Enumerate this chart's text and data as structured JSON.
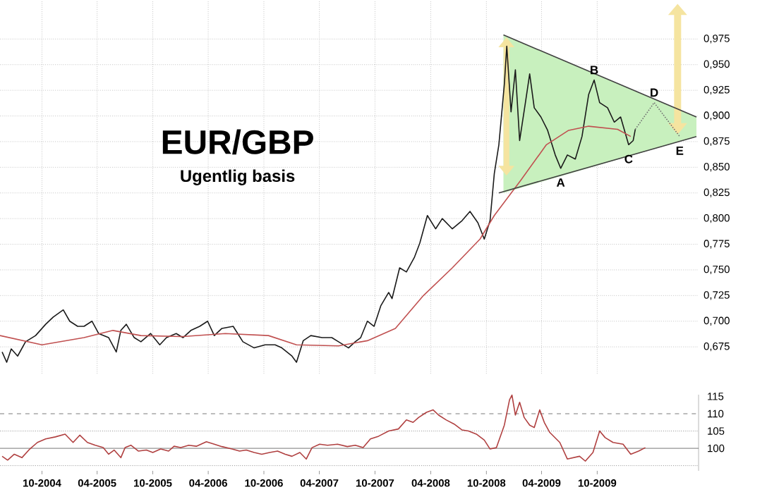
{
  "chart_data": [
    {
      "type": "line",
      "title": "EUR/GBP",
      "subtitle": "Ugentlig basis",
      "xlim": [
        "2004-05-16",
        "2010-08-30"
      ],
      "ylim": [
        0.649,
        1.013
      ],
      "tick_labels": "y",
      "grid": true,
      "xticks": [
        {
          "value": "2004-10-01",
          "label": null
        },
        {
          "value": "2005-04-01",
          "label": null
        },
        {
          "value": "2005-10-01",
          "label": null
        },
        {
          "value": "2006-04-01",
          "label": null
        },
        {
          "value": "2006-10-01",
          "label": null
        },
        {
          "value": "2007-04-01",
          "label": null
        },
        {
          "value": "2007-10-01",
          "label": null
        },
        {
          "value": "2008-04-01",
          "label": null
        },
        {
          "value": "2008-10-01",
          "label": null
        },
        {
          "value": "2009-04-01",
          "label": null
        },
        {
          "value": "2009-10-01",
          "label": null
        }
      ],
      "yticks": [
        {
          "value": 0.675,
          "label": "0,675"
        },
        {
          "value": 0.7,
          "label": "0,700"
        },
        {
          "value": 0.725,
          "label": "0,725"
        },
        {
          "value": 0.75,
          "label": "0,750"
        },
        {
          "value": 0.775,
          "label": "0,775"
        },
        {
          "value": 0.8,
          "label": "0,800"
        },
        {
          "value": 0.825,
          "label": "0,825"
        },
        {
          "value": 0.85,
          "label": "0,850"
        },
        {
          "value": 0.875,
          "label": "0,875"
        },
        {
          "value": 0.9,
          "label": "0,900"
        },
        {
          "value": 0.925,
          "label": "0,925"
        },
        {
          "value": 0.95,
          "label": "0,950"
        },
        {
          "value": 0.975,
          "label": "0,975"
        }
      ],
      "annotations": [
        {
          "text": "A",
          "x": "2009-06-03",
          "y": 0.849
        },
        {
          "text": "B",
          "x": "2009-09-21",
          "y": 0.935
        },
        {
          "text": "C",
          "x": "2010-01-12",
          "y": 0.872
        },
        {
          "text": "D",
          "x": "2010-04-06",
          "y": 0.913
        },
        {
          "text": "E",
          "x": "2010-06-29",
          "y": 0.88
        }
      ],
      "series": [
        {
          "color": "#1a1a1a",
          "line_style": "solid",
          "x": [
            "2004-05-23",
            "2004-06-07",
            "2004-06-22",
            "2004-07-13",
            "2004-08-08",
            "2004-09-10",
            "2004-10-13",
            "2004-11-07",
            "2004-12-10",
            "2005-01-01",
            "2005-01-27",
            "2005-02-17",
            "2005-03-15",
            "2005-04-06",
            "2005-05-09",
            "2005-06-03",
            "2005-06-18",
            "2005-07-06",
            "2005-08-01",
            "2005-08-23",
            "2005-09-24",
            "2005-10-24",
            "2005-11-15",
            "2005-12-17",
            "2006-01-08",
            "2006-02-03",
            "2006-03-04",
            "2006-03-30",
            "2006-04-21",
            "2006-05-16",
            "2006-06-22",
            "2006-07-24",
            "2006-08-30",
            "2006-10-05",
            "2006-11-07",
            "2006-11-29",
            "2007-01-01",
            "2007-01-16",
            "2007-02-07",
            "2007-03-04",
            "2007-04-10",
            "2007-05-12",
            "2007-06-03",
            "2007-07-06",
            "2007-07-28",
            "2007-08-15",
            "2007-09-06",
            "2007-09-28",
            "2007-10-20",
            "2007-11-15",
            "2007-11-26",
            "2007-12-21",
            "2008-01-12",
            "2008-02-07",
            "2008-02-25",
            "2008-03-21",
            "2008-04-17",
            "2008-05-09",
            "2008-06-11",
            "2008-07-13",
            "2008-08-08",
            "2008-09-03",
            "2008-09-24",
            "2008-10-13",
            "2008-10-27",
            "2008-11-11",
            "2008-11-29",
            "2008-12-07",
            "2008-12-21",
            "2009-01-05",
            "2009-01-19",
            "2009-02-07",
            "2009-02-21",
            "2009-03-08",
            "2009-03-30",
            "2009-04-21",
            "2009-05-16",
            "2009-06-03",
            "2009-06-25",
            "2009-07-21",
            "2009-08-12",
            "2009-09-03",
            "2009-09-21",
            "2009-10-09",
            "2009-11-04",
            "2009-11-26",
            "2009-12-17",
            "2010-01-12",
            "2010-01-27",
            "2010-02-03"
          ],
          "values": [
            0.67,
            0.66,
            0.673,
            0.666,
            0.68,
            0.686,
            0.697,
            0.704,
            0.711,
            0.7,
            0.695,
            0.695,
            0.7,
            0.688,
            0.684,
            0.67,
            0.691,
            0.697,
            0.684,
            0.68,
            0.688,
            0.677,
            0.684,
            0.688,
            0.684,
            0.691,
            0.695,
            0.7,
            0.686,
            0.693,
            0.695,
            0.68,
            0.674,
            0.677,
            0.677,
            0.674,
            0.666,
            0.66,
            0.681,
            0.686,
            0.684,
            0.684,
            0.68,
            0.674,
            0.68,
            0.684,
            0.7,
            0.695,
            0.715,
            0.728,
            0.722,
            0.752,
            0.748,
            0.762,
            0.776,
            0.803,
            0.79,
            0.8,
            0.79,
            0.798,
            0.807,
            0.796,
            0.78,
            0.798,
            0.844,
            0.872,
            0.931,
            0.968,
            0.904,
            0.945,
            0.876,
            0.913,
            0.941,
            0.908,
            0.899,
            0.886,
            0.862,
            0.849,
            0.862,
            0.858,
            0.88,
            0.921,
            0.935,
            0.913,
            0.908,
            0.894,
            0.899,
            0.872,
            0.876,
            0.887
          ]
        },
        {
          "color": "#c05050",
          "line_style": "solid",
          "x": [
            "2004-05-16",
            "2004-10-01",
            "2005-02-17",
            "2005-05-23",
            "2005-08-23",
            "2006-01-08",
            "2006-05-27",
            "2006-10-16",
            "2007-01-16",
            "2007-06-03",
            "2007-09-06",
            "2007-12-07",
            "2008-03-08",
            "2008-06-11",
            "2008-09-10",
            "2008-10-27",
            "2009-01-27",
            "2009-04-17",
            "2009-06-29",
            "2009-09-03",
            "2009-12-07",
            "2010-01-19"
          ],
          "values": [
            0.686,
            0.677,
            0.684,
            0.691,
            0.686,
            0.685,
            0.688,
            0.686,
            0.677,
            0.676,
            0.681,
            0.693,
            0.725,
            0.752,
            0.78,
            0.803,
            0.839,
            0.872,
            0.886,
            0.89,
            0.887,
            0.88
          ]
        },
        {
          "color": "#404040",
          "line_style": "solid",
          "x": [
            "2008-11-26",
            "2010-08-23"
          ],
          "values": [
            0.979,
            0.899
          ],
          "lower": [
            0.825,
            0.88
          ],
          "upper": [
            0.979,
            0.899
          ]
        },
        {
          "color": "#404040",
          "line_style": "solid",
          "x": [
            "2008-11-11",
            "2010-08-23"
          ],
          "values": [
            0.825,
            0.88
          ]
        },
        {
          "color": "#707070",
          "line_style": "dotted",
          "x": [
            "2010-02-03",
            "2010-04-06",
            "2010-06-29"
          ],
          "values": [
            0.887,
            0.913,
            0.88
          ]
        }
      ]
    },
    {
      "type": "line",
      "xlim": [
        "2004-05-16",
        "2010-08-30"
      ],
      "ylim": [
        93.5,
        115.5
      ],
      "grid": false,
      "xticks": [
        {
          "value": "2004-10-01",
          "label": "10-2004"
        },
        {
          "value": "2005-04-01",
          "label": "04-2005"
        },
        {
          "value": "2005-10-01",
          "label": "10-2005"
        },
        {
          "value": "2006-04-01",
          "label": "04-2006"
        },
        {
          "value": "2006-10-01",
          "label": "10-2006"
        },
        {
          "value": "2007-04-01",
          "label": "04-2007"
        },
        {
          "value": "2007-10-01",
          "label": "10-2007"
        },
        {
          "value": "2008-04-01",
          "label": "04-2008"
        },
        {
          "value": "2008-10-01",
          "label": "10-2008"
        },
        {
          "value": "2009-04-01",
          "label": "04-2009"
        },
        {
          "value": "2009-10-01",
          "label": "10-2009"
        }
      ],
      "yticks": [
        100,
        105,
        110,
        115
      ],
      "ref_lines": [
        {
          "axis": "y",
          "value": 110,
          "color": "#555555",
          "line_style": "dashed"
        },
        {
          "axis": "y",
          "value": 105,
          "color": "#555555",
          "line_style": "dotted"
        },
        {
          "axis": "y",
          "value": 100,
          "color": "#555555",
          "line_style": "solid"
        },
        {
          "axis": "y",
          "value": 95,
          "color": "#555555",
          "line_style": "dotted"
        }
      ],
      "series": [
        {
          "color": "#b04040",
          "line_style": "solid",
          "x": [
            "2004-05-23",
            "2004-06-10",
            "2004-07-02",
            "2004-07-27",
            "2004-08-22",
            "2004-09-16",
            "2004-10-13",
            "2004-11-14",
            "2004-12-16",
            "2005-01-12",
            "2005-02-03",
            "2005-02-28",
            "2005-03-26",
            "2005-04-21",
            "2005-05-09",
            "2005-05-27",
            "2005-06-18",
            "2005-07-02",
            "2005-07-21",
            "2005-08-15",
            "2005-09-10",
            "2005-10-01",
            "2005-10-27",
            "2005-11-22",
            "2005-12-10",
            "2006-01-01",
            "2006-01-27",
            "2006-02-21",
            "2006-03-26",
            "2006-04-21",
            "2006-05-16",
            "2006-06-18",
            "2006-07-13",
            "2006-08-04",
            "2006-08-30",
            "2006-09-24",
            "2006-10-20",
            "2006-11-15",
            "2006-12-10",
            "2007-01-01",
            "2007-01-27",
            "2007-02-17",
            "2007-03-08",
            "2007-04-02",
            "2007-04-28",
            "2007-05-31",
            "2007-07-02",
            "2007-07-28",
            "2007-08-23",
            "2007-09-16",
            "2007-10-13",
            "2007-11-15",
            "2007-12-17",
            "2008-01-12",
            "2008-02-03",
            "2008-02-21",
            "2008-03-18",
            "2008-04-09",
            "2008-04-27",
            "2008-05-22",
            "2008-06-17",
            "2008-07-13",
            "2008-08-03",
            "2008-08-29",
            "2008-09-24",
            "2008-10-13",
            "2008-11-03",
            "2008-11-29",
            "2008-12-16",
            "2008-12-24",
            "2009-01-05",
            "2009-01-19",
            "2009-02-03",
            "2009-02-21",
            "2009-03-08",
            "2009-03-26",
            "2009-04-10",
            "2009-04-28",
            "2009-05-31",
            "2009-06-25",
            "2009-08-04",
            "2009-08-23",
            "2009-09-17",
            "2009-10-09",
            "2009-10-27",
            "2009-11-22",
            "2009-12-25",
            "2010-01-19",
            "2010-02-14",
            "2010-03-08"
          ],
          "values": [
            97.7,
            96.6,
            98.3,
            97.3,
            99.8,
            101.7,
            102.7,
            103.3,
            104.1,
            101.7,
            103.8,
            101.7,
            100.9,
            100.2,
            98.3,
            99.5,
            97.3,
            100.2,
            100.9,
            99.2,
            99.5,
            98.8,
            99.8,
            99.2,
            100.6,
            100.2,
            100.9,
            100.6,
            101.9,
            101.2,
            100.5,
            99.8,
            99.2,
            99.5,
            98.8,
            98.3,
            98.8,
            99.2,
            98.3,
            97.7,
            98.8,
            96.9,
            100.2,
            101.2,
            100.9,
            101.2,
            100.5,
            100.9,
            100.2,
            102.7,
            103.5,
            105.0,
            105.6,
            108.2,
            107.5,
            108.9,
            110.4,
            111.1,
            109.6,
            108.2,
            107.0,
            105.3,
            105.0,
            104.1,
            102.4,
            99.8,
            100.2,
            106.7,
            114.0,
            115.4,
            109.6,
            113.3,
            108.9,
            106.7,
            106.0,
            111.1,
            107.5,
            104.6,
            101.7,
            96.9,
            97.7,
            96.3,
            98.8,
            105.0,
            103.1,
            101.7,
            101.2,
            98.3,
            99.2,
            100.2
          ]
        }
      ]
    }
  ]
}
